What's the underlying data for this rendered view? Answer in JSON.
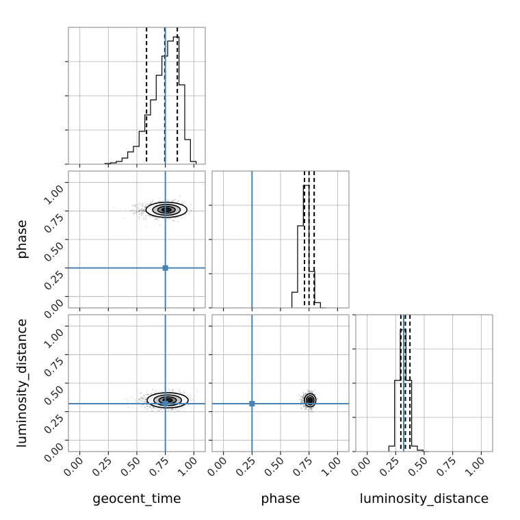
{
  "chart_data": {
    "type": "corner",
    "parameters": [
      "geocent_time",
      "phase",
      "luminosity_distance"
    ],
    "tick_labels": [
      "0.00",
      "0.25",
      "0.50",
      "0.75",
      "1.00"
    ],
    "axis_range": [
      -0.1,
      1.1
    ],
    "truths": {
      "geocent_time": 0.75,
      "phase": 0.25,
      "luminosity_distance": 0.32
    },
    "colors": {
      "truth": "#4682b4",
      "histogram": "#000000",
      "grid": "#b0b0b0",
      "frame": "#808080"
    },
    "grid": true,
    "histograms": [
      {
        "parameter": "geocent_time",
        "bin_edges": [
          0.22,
          0.27,
          0.32,
          0.37,
          0.42,
          0.47,
          0.52,
          0.57,
          0.62,
          0.67,
          0.72,
          0.77,
          0.82,
          0.87,
          0.92,
          0.97,
          1.02
        ],
        "counts": [
          0.005,
          0.01,
          0.02,
          0.045,
          0.09,
          0.13,
          0.24,
          0.36,
          0.47,
          0.65,
          0.79,
          0.9,
          0.93,
          0.58,
          0.18,
          0.02
        ],
        "quantiles": [
          0.585,
          0.745,
          0.855
        ],
        "ymax": 1.0
      },
      {
        "parameter": "phase",
        "bin_edges": [
          0.6,
          0.65,
          0.7,
          0.75,
          0.8,
          0.85,
          0.9
        ],
        "counts": [
          0.12,
          0.63,
          0.94,
          0.28,
          0.04,
          0.0
        ],
        "quantiles": [
          0.71,
          0.75,
          0.795
        ],
        "ymax": 1.05
      },
      {
        "parameter": "luminosity_distance",
        "bin_edges": [
          0.19,
          0.24,
          0.29,
          0.34,
          0.39,
          0.44,
          0.49,
          0.54
        ],
        "counts": [
          0.04,
          0.52,
          0.89,
          0.52,
          0.04,
          0.01,
          0.0
        ],
        "quantiles": [
          0.295,
          0.335,
          0.375
        ],
        "ymax": 1.0
      }
    ],
    "contours": [
      {
        "x": "geocent_time",
        "y": "phase",
        "center": [
          0.76,
          0.76
        ],
        "spread": [
          0.09,
          0.035
        ]
      },
      {
        "x": "geocent_time",
        "y": "luminosity_distance",
        "center": [
          0.77,
          0.35
        ],
        "spread": [
          0.09,
          0.035
        ]
      },
      {
        "x": "phase",
        "y": "luminosity_distance",
        "center": [
          0.76,
          0.35
        ],
        "spread": [
          0.025,
          0.03
        ]
      }
    ]
  }
}
